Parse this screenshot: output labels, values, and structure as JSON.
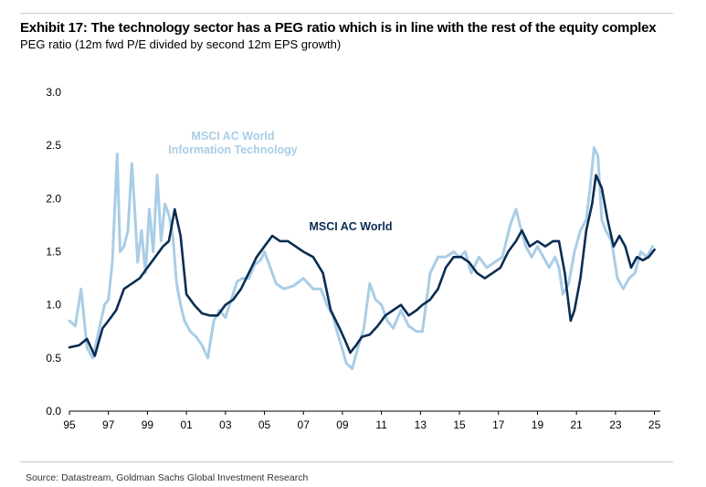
{
  "header": {
    "title": "Exhibit 17: The technology sector has a PEG ratio which is in line with the rest of the equity complex",
    "subtitle": "PEG ratio (12m fwd P/E divided by second 12m EPS growth)"
  },
  "footer": {
    "source": "Source: Datastream, Goldman Sachs Global Investment Research"
  },
  "chart_data": {
    "type": "line",
    "title": "Exhibit 17: The technology sector has a PEG ratio which is in line with the rest of the equity complex",
    "subtitle": "PEG ratio (12m fwd P/E divided by second 12m EPS growth)",
    "xlabel": "",
    "ylabel": "",
    "xlim": [
      1995,
      2025.3
    ],
    "ylim": [
      0,
      3
    ],
    "x_ticks": [
      1995,
      1997,
      1999,
      2001,
      2003,
      2005,
      2007,
      2009,
      2011,
      2013,
      2015,
      2017,
      2019,
      2021,
      2023,
      2025
    ],
    "x_tick_labels": [
      "95",
      "97",
      "99",
      "01",
      "03",
      "05",
      "07",
      "09",
      "11",
      "13",
      "15",
      "17",
      "19",
      "21",
      "23",
      "25"
    ],
    "y_ticks": [
      0,
      0.5,
      1,
      1.5,
      2,
      2.5,
      3
    ],
    "y_tick_labels": [
      "0.0",
      "0.5",
      "1.0",
      "1.5",
      "2.0",
      "2.5",
      "3.0"
    ],
    "grid": false,
    "legend": "inline labels",
    "series": [
      {
        "name": "MSCI AC World Information Technology",
        "label_lines": [
          "MSCI AC World",
          "Information Technology"
        ],
        "color": "#a9cde6",
        "x": [
          1995.0,
          1995.3,
          1995.6,
          1995.9,
          1996.2,
          1996.5,
          1996.8,
          1997.0,
          1997.2,
          1997.45,
          1997.6,
          1997.8,
          1998.0,
          1998.2,
          1998.35,
          1998.5,
          1998.7,
          1998.9,
          1999.1,
          1999.3,
          1999.5,
          1999.7,
          1999.9,
          2000.1,
          2000.3,
          2000.5,
          2000.7,
          2000.9,
          2001.2,
          2001.5,
          2001.8,
          2002.1,
          2002.4,
          2002.7,
          2003.0,
          2003.3,
          2003.6,
          2003.9,
          2004.2,
          2004.5,
          2004.8,
          2005.0,
          2005.3,
          2005.6,
          2006.0,
          2006.5,
          2007.0,
          2007.5,
          2007.9,
          2008.2,
          2008.5,
          2008.8,
          2009.0,
          2009.2,
          2009.5,
          2009.8,
          2010.1,
          2010.4,
          2010.7,
          2011.0,
          2011.3,
          2011.6,
          2012.0,
          2012.4,
          2012.8,
          2013.1,
          2013.5,
          2013.9,
          2014.3,
          2014.7,
          2015.0,
          2015.3,
          2015.6,
          2016.0,
          2016.4,
          2016.8,
          2017.2,
          2017.6,
          2017.9,
          2018.1,
          2018.4,
          2018.7,
          2019.0,
          2019.3,
          2019.6,
          2019.9,
          2020.1,
          2020.3,
          2020.6,
          2020.9,
          2021.2,
          2021.5,
          2021.7,
          2021.9,
          2022.1,
          2022.3,
          2022.5,
          2022.8,
          2023.1,
          2023.4,
          2023.7,
          2024.0,
          2024.3,
          2024.6,
          2024.9
        ],
        "values": [
          0.85,
          0.8,
          1.15,
          0.6,
          0.5,
          0.75,
          1.0,
          1.05,
          1.4,
          2.42,
          1.5,
          1.55,
          1.7,
          2.33,
          1.9,
          1.4,
          1.7,
          1.3,
          1.9,
          1.5,
          2.22,
          1.6,
          1.95,
          1.85,
          1.65,
          1.2,
          1.0,
          0.85,
          0.75,
          0.7,
          0.62,
          0.5,
          0.85,
          0.95,
          0.88,
          1.05,
          1.22,
          1.25,
          1.25,
          1.38,
          1.42,
          1.5,
          1.35,
          1.2,
          1.15,
          1.18,
          1.25,
          1.15,
          1.15,
          1.0,
          0.9,
          0.7,
          0.58,
          0.45,
          0.4,
          0.6,
          0.78,
          1.2,
          1.05,
          1.0,
          0.85,
          0.78,
          0.95,
          0.8,
          0.75,
          0.75,
          1.3,
          1.45,
          1.45,
          1.5,
          1.45,
          1.5,
          1.3,
          1.45,
          1.35,
          1.4,
          1.45,
          1.75,
          1.9,
          1.75,
          1.55,
          1.45,
          1.55,
          1.45,
          1.35,
          1.45,
          1.35,
          1.1,
          1.2,
          1.5,
          1.7,
          1.8,
          2.1,
          2.48,
          2.4,
          1.8,
          1.7,
          1.6,
          1.25,
          1.15,
          1.25,
          1.3,
          1.5,
          1.45,
          1.55
        ]
      },
      {
        "name": "MSCI AC World",
        "label_lines": [
          "MSCI AC World"
        ],
        "color": "#0b2d52",
        "x": [
          1995.0,
          1995.5,
          1995.9,
          1996.3,
          1996.7,
          1997.0,
          1997.4,
          1997.8,
          1998.2,
          1998.6,
          1999.0,
          1999.4,
          1999.8,
          2000.1,
          2000.4,
          2000.7,
          2001.0,
          2001.4,
          2001.8,
          2002.2,
          2002.6,
          2003.0,
          2003.4,
          2003.8,
          2004.2,
          2004.6,
          2005.0,
          2005.4,
          2005.8,
          2006.2,
          2006.6,
          2007.0,
          2007.5,
          2008.0,
          2008.4,
          2008.8,
          2009.1,
          2009.4,
          2009.7,
          2010.0,
          2010.4,
          2010.8,
          2011.2,
          2011.6,
          2012.0,
          2012.4,
          2012.8,
          2013.1,
          2013.5,
          2013.9,
          2014.3,
          2014.7,
          2015.1,
          2015.5,
          2015.9,
          2016.3,
          2016.7,
          2017.1,
          2017.5,
          2017.9,
          2018.2,
          2018.6,
          2019.0,
          2019.4,
          2019.8,
          2020.1,
          2020.4,
          2020.7,
          2020.9,
          2021.2,
          2021.5,
          2021.8,
          2022.0,
          2022.3,
          2022.6,
          2022.9,
          2023.2,
          2023.5,
          2023.8,
          2024.1,
          2024.4,
          2024.7,
          2025.0
        ],
        "values": [
          0.6,
          0.62,
          0.68,
          0.52,
          0.78,
          0.85,
          0.95,
          1.15,
          1.2,
          1.25,
          1.35,
          1.45,
          1.55,
          1.6,
          1.9,
          1.65,
          1.1,
          1.0,
          0.92,
          0.9,
          0.9,
          1.0,
          1.05,
          1.15,
          1.3,
          1.45,
          1.55,
          1.65,
          1.6,
          1.6,
          1.55,
          1.5,
          1.45,
          1.3,
          0.95,
          0.8,
          0.68,
          0.55,
          0.62,
          0.7,
          0.72,
          0.8,
          0.9,
          0.95,
          1.0,
          0.9,
          0.95,
          1.0,
          1.05,
          1.15,
          1.35,
          1.45,
          1.45,
          1.4,
          1.3,
          1.25,
          1.3,
          1.35,
          1.5,
          1.6,
          1.7,
          1.55,
          1.6,
          1.55,
          1.6,
          1.6,
          1.3,
          0.85,
          0.95,
          1.25,
          1.7,
          1.95,
          2.22,
          2.1,
          1.8,
          1.55,
          1.65,
          1.55,
          1.35,
          1.45,
          1.42,
          1.45,
          1.52
        ]
      }
    ]
  }
}
